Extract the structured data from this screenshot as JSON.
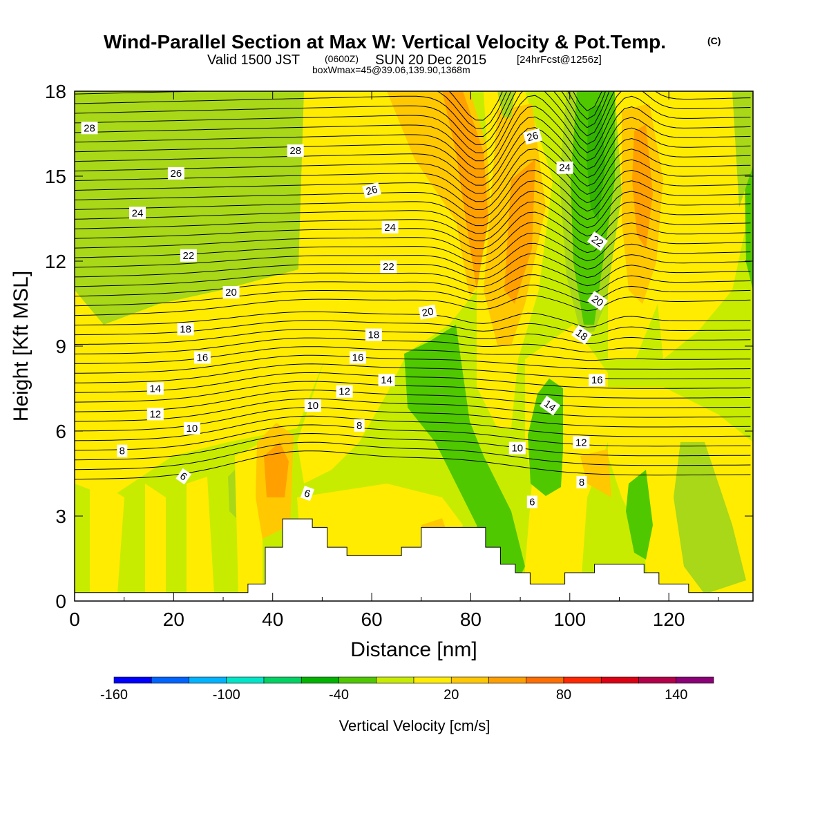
{
  "chart_data": {
    "type": "heatmap",
    "title": {
      "main": "Wind-Parallel Section at Max W: Vertical Velocity & Pot.Temp.",
      "copyright": "(C)",
      "valid_prefix": "Valid 1500 JST",
      "valid_z": "(0600Z)",
      "valid_date": "SUN 20 Dec 2015",
      "forecast": "[24hrFcst@1256z]",
      "box": "boxWmax=45@39.06,139.90,1368m"
    },
    "xlabel": "Distance [nm]",
    "ylabel": "Height [Kft MSL]",
    "xlim": [
      0,
      137
    ],
    "ylim": [
      0,
      18
    ],
    "xticks": [
      "0",
      "20",
      "40",
      "60",
      "80",
      "100",
      "120"
    ],
    "xtick_values": [
      0,
      20,
      40,
      60,
      80,
      100,
      120
    ],
    "yticks": [
      "0",
      "3",
      "6",
      "9",
      "12",
      "15",
      "18"
    ],
    "ytick_values": [
      0,
      3,
      6,
      9,
      12,
      15,
      18
    ],
    "colorbar": {
      "label": "Vertical Velocity [cm/s]",
      "ticks": [
        "-160",
        "-100",
        "-40",
        "20",
        "80",
        "140"
      ],
      "tick_values": [
        -160,
        -100,
        -40,
        20,
        80,
        140
      ],
      "levels": [
        -160,
        -140,
        -120,
        -100,
        -80,
        -60,
        -40,
        -20,
        0,
        20,
        40,
        60,
        80,
        100,
        120,
        140,
        160
      ],
      "colors": [
        "#0000ff",
        "#0064ff",
        "#00b4ff",
        "#00e6c8",
        "#00d264",
        "#00b400",
        "#50c800",
        "#c8ec00",
        "#ffec00",
        "#ffc800",
        "#ffa000",
        "#ff6e00",
        "#ff2800",
        "#dc0014",
        "#b4004b",
        "#8c0078"
      ]
    },
    "terrain": [
      [
        0,
        0.3
      ],
      [
        35,
        0.3
      ],
      [
        35,
        0.6
      ],
      [
        38.5,
        0.6
      ],
      [
        38.5,
        1.9
      ],
      [
        42,
        1.9
      ],
      [
        42,
        2.9
      ],
      [
        48,
        2.9
      ],
      [
        48,
        2.6
      ],
      [
        51,
        2.6
      ],
      [
        51,
        1.9
      ],
      [
        55,
        1.9
      ],
      [
        55,
        1.6
      ],
      [
        66,
        1.6
      ],
      [
        66,
        1.9
      ],
      [
        70,
        1.9
      ],
      [
        70,
        2.6
      ],
      [
        83,
        2.6
      ],
      [
        83,
        1.9
      ],
      [
        86,
        1.9
      ],
      [
        86,
        1.3
      ],
      [
        89,
        1.3
      ],
      [
        89,
        1.0
      ],
      [
        92,
        1.0
      ],
      [
        92,
        0.6
      ],
      [
        99,
        0.6
      ],
      [
        99,
        1.0
      ],
      [
        105,
        1.0
      ],
      [
        105,
        1.3
      ],
      [
        115,
        1.3
      ],
      [
        115,
        1.0
      ],
      [
        118,
        1.0
      ],
      [
        118,
        0.6
      ],
      [
        124,
        0.6
      ],
      [
        124,
        0.3
      ],
      [
        137,
        0.3
      ]
    ],
    "theta_contour_labels": [
      {
        "text": "28",
        "x": 3,
        "y": 16.7,
        "rot": 0
      },
      {
        "text": "28",
        "x": 44.6,
        "y": 15.9,
        "rot": 0
      },
      {
        "text": "26",
        "x": 20.5,
        "y": 15.1,
        "rot": 0
      },
      {
        "text": "26",
        "x": 60,
        "y": 14.5,
        "rot": -15
      },
      {
        "text": "26",
        "x": 92.5,
        "y": 16.4,
        "rot": -15
      },
      {
        "text": "24",
        "x": 12.7,
        "y": 13.7,
        "rot": 0
      },
      {
        "text": "24",
        "x": 63.7,
        "y": 13.2,
        "rot": 0
      },
      {
        "text": "24",
        "x": 99,
        "y": 15.3,
        "rot": 0
      },
      {
        "text": "22",
        "x": 23,
        "y": 12.2,
        "rot": 0
      },
      {
        "text": "22",
        "x": 63.4,
        "y": 11.8,
        "rot": 0
      },
      {
        "text": "22",
        "x": 105.6,
        "y": 12.7,
        "rot": 35
      },
      {
        "text": "20",
        "x": 31.6,
        "y": 10.9,
        "rot": 0
      },
      {
        "text": "20",
        "x": 71.3,
        "y": 10.2,
        "rot": -10
      },
      {
        "text": "20",
        "x": 105.6,
        "y": 10.6,
        "rot": 35
      },
      {
        "text": "18",
        "x": 22.4,
        "y": 9.6,
        "rot": 0
      },
      {
        "text": "18",
        "x": 60.4,
        "y": 9.4,
        "rot": 0
      },
      {
        "text": "18",
        "x": 102.4,
        "y": 9.4,
        "rot": 35
      },
      {
        "text": "16",
        "x": 25.8,
        "y": 8.6,
        "rot": 0
      },
      {
        "text": "16",
        "x": 57.2,
        "y": 8.6,
        "rot": 0
      },
      {
        "text": "16",
        "x": 105.5,
        "y": 7.8,
        "rot": 0
      },
      {
        "text": "14",
        "x": 16.3,
        "y": 7.5,
        "rot": 0
      },
      {
        "text": "14",
        "x": 63,
        "y": 7.8,
        "rot": 0
      },
      {
        "text": "14",
        "x": 96,
        "y": 6.9,
        "rot": 35
      },
      {
        "text": "12",
        "x": 16.3,
        "y": 6.6,
        "rot": 0
      },
      {
        "text": "12",
        "x": 54.5,
        "y": 7.4,
        "rot": 0
      },
      {
        "text": "12",
        "x": 102.3,
        "y": 5.6,
        "rot": 0
      },
      {
        "text": "10",
        "x": 23.7,
        "y": 6.1,
        "rot": 0
      },
      {
        "text": "10",
        "x": 48.1,
        "y": 6.9,
        "rot": 0
      },
      {
        "text": "10",
        "x": 89.4,
        "y": 5.4,
        "rot": 0
      },
      {
        "text": "8",
        "x": 9.6,
        "y": 5.3,
        "rot": 0
      },
      {
        "text": "8",
        "x": 57.5,
        "y": 6.2,
        "rot": 0
      },
      {
        "text": "8",
        "x": 102.4,
        "y": 4.2,
        "rot": 0
      },
      {
        "text": "6",
        "x": 22,
        "y": 4.4,
        "rot": 35
      },
      {
        "text": "6",
        "x": 47,
        "y": 3.8,
        "rot": 20
      },
      {
        "text": "6",
        "x": 92.4,
        "y": 3.5,
        "rot": 0
      }
    ]
  }
}
